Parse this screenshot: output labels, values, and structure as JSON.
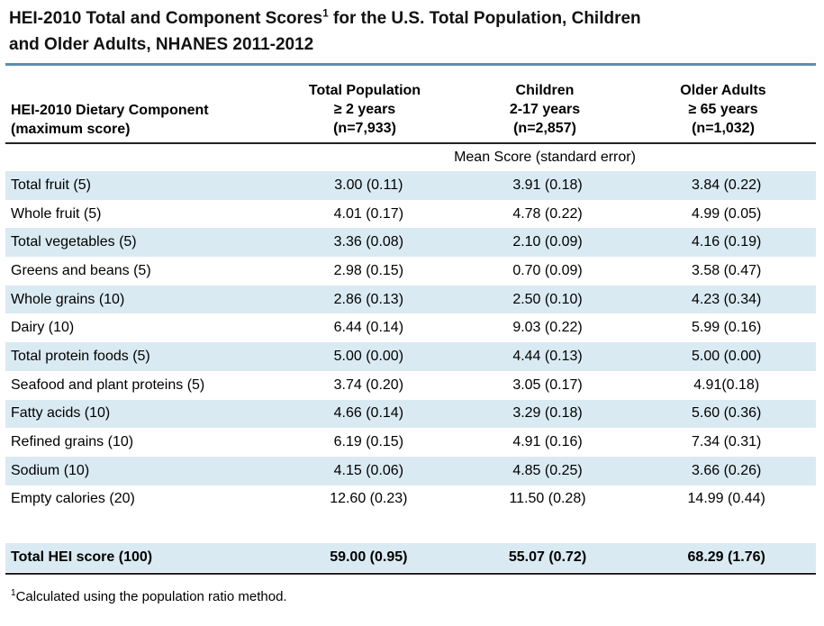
{
  "title": {
    "line1_main": "HEI-2010 Total and Component Scores",
    "line1_sup": "1",
    "line1_rest": " for the U.S. Total Population, Children",
    "line2": "and Older Adults, NHANES 2011-2012"
  },
  "header": {
    "component_line1": "HEI-2010 Dietary Component",
    "component_line2": "(maximum score)",
    "columns": [
      {
        "line1": "Total Population",
        "line2": "≥ 2 years",
        "line3": "(n=7,933)"
      },
      {
        "line1": "Children",
        "line2": "2-17 years",
        "line3": "(n=2,857)"
      },
      {
        "line1": "Older Adults",
        "line2": "≥ 65 years",
        "line3": "(n=1,032)"
      }
    ],
    "subheader": "Mean Score (standard error)"
  },
  "rows": [
    {
      "component": "Total fruit (5)",
      "total": "3.00 (0.11)",
      "children": "3.91 (0.18)",
      "older": "3.84 (0.22)"
    },
    {
      "component": "Whole fruit (5)",
      "total": "4.01 (0.17)",
      "children": "4.78 (0.22)",
      "older": "4.99 (0.05)"
    },
    {
      "component": "Total vegetables (5)",
      "total": "3.36 (0.08)",
      "children": "2.10 (0.09)",
      "older": "4.16 (0.19)"
    },
    {
      "component": "Greens and beans (5)",
      "total": "2.98 (0.15)",
      "children": "0.70 (0.09)",
      "older": "3.58 (0.47)"
    },
    {
      "component": "Whole grains (10)",
      "total": "2.86 (0.13)",
      "children": "2.50 (0.10)",
      "older": "4.23 (0.34)"
    },
    {
      "component": "Dairy (10)",
      "total": "6.44 (0.14)",
      "children": "9.03 (0.22)",
      "older": "5.99 (0.16)"
    },
    {
      "component": "Total protein foods (5)",
      "total": "5.00 (0.00)",
      "children": "4.44 (0.13)",
      "older": "5.00 (0.00)"
    },
    {
      "component": "Seafood and plant proteins (5)",
      "total": "3.74 (0.20)",
      "children": "3.05 (0.17)",
      "older": "4.91(0.18)"
    },
    {
      "component": "Fatty acids (10)",
      "total": "4.66 (0.14)",
      "children": "3.29 (0.18)",
      "older": "5.60 (0.36)"
    },
    {
      "component": "Refined grains (10)",
      "total": "6.19 (0.15)",
      "children": "4.91 (0.16)",
      "older": "7.34 (0.31)"
    },
    {
      "component": "Sodium (10)",
      "total": "4.15 (0.06)",
      "children": "4.85 (0.25)",
      "older": "3.66 (0.26)"
    },
    {
      "component": "Empty calories (20)",
      "total": "12.60 (0.23)",
      "children": "11.50 (0.28)",
      "older": "14.99 (0.44)"
    }
  ],
  "total_row": {
    "component": "Total HEI score (100)",
    "total": "59.00 (0.95)",
    "children": "55.07 (0.72)",
    "older": "68.29 (1.76)"
  },
  "footnote": {
    "sup": "1",
    "text": "Calculated using the population ratio method."
  },
  "colors": {
    "shade": "#daeaf2",
    "accent_rule": "#5b8fb0"
  }
}
